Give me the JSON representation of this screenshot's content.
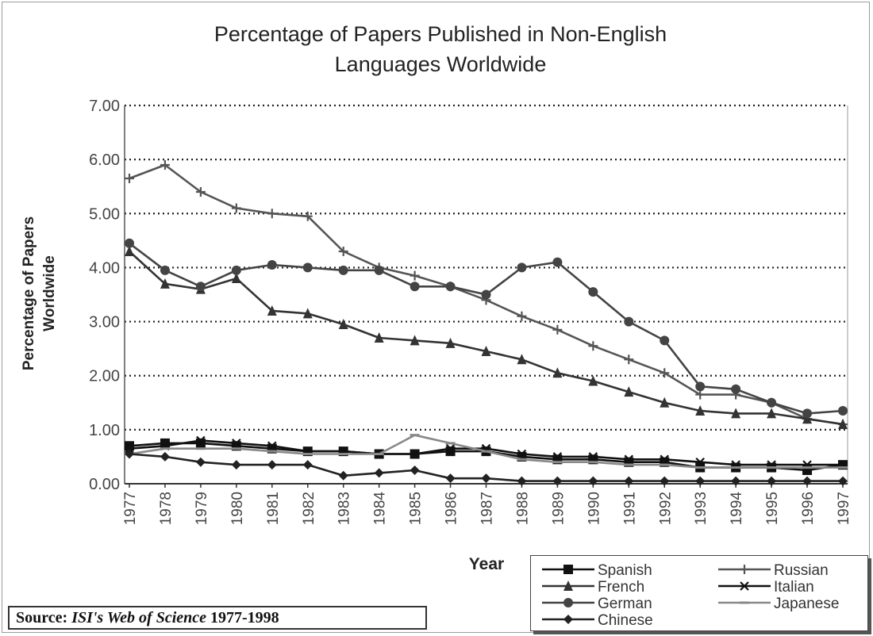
{
  "chart_data": {
    "type": "line",
    "title": [
      "Percentage of Papers Published in Non-English",
      "Languages Worldwide"
    ],
    "xlabel": "Year",
    "ylabel": [
      "Percentage of Papers",
      "Worldwide"
    ],
    "ylim": [
      0,
      7
    ],
    "yticks": [
      "0.00",
      "1.00",
      "2.00",
      "3.00",
      "4.00",
      "5.00",
      "6.00",
      "7.00"
    ],
    "grid": "horizontal dotted",
    "legend_position": "bottom-right",
    "categories": [
      "1977",
      "1978",
      "1979",
      "1980",
      "1981",
      "1982",
      "1983",
      "1984",
      "1985",
      "1986",
      "1987",
      "1988",
      "1989",
      "1990",
      "1991",
      "1992",
      "1993",
      "1994",
      "1995",
      "1996",
      "1997"
    ],
    "series": [
      {
        "name": "Spanish",
        "marker": "square",
        "color": "#111111",
        "values": [
          0.7,
          0.75,
          0.75,
          0.7,
          0.65,
          0.6,
          0.6,
          0.55,
          0.55,
          0.6,
          0.6,
          0.5,
          0.45,
          0.45,
          0.4,
          0.4,
          0.3,
          0.3,
          0.3,
          0.25,
          0.35
        ]
      },
      {
        "name": "Russian",
        "marker": "plus",
        "color": "#555555",
        "values": [
          5.65,
          5.9,
          5.4,
          5.1,
          5.0,
          4.95,
          4.3,
          4.0,
          3.85,
          3.65,
          3.4,
          3.1,
          2.85,
          2.55,
          2.3,
          2.05,
          1.65,
          1.65,
          1.5,
          1.2,
          1.1
        ]
      },
      {
        "name": "French",
        "marker": "triangle",
        "color": "#333333",
        "values": [
          4.3,
          3.7,
          3.6,
          3.8,
          3.2,
          3.15,
          2.95,
          2.7,
          2.65,
          2.6,
          2.45,
          2.3,
          2.05,
          1.9,
          1.7,
          1.5,
          1.35,
          1.3,
          1.3,
          1.2,
          1.1
        ]
      },
      {
        "name": "Italian",
        "marker": "x",
        "color": "#111111",
        "values": [
          0.65,
          0.7,
          0.8,
          0.75,
          0.7,
          0.6,
          0.6,
          0.55,
          0.55,
          0.65,
          0.65,
          0.55,
          0.5,
          0.5,
          0.45,
          0.45,
          0.4,
          0.35,
          0.35,
          0.35,
          0.35
        ]
      },
      {
        "name": "German",
        "marker": "circle",
        "color": "#444444",
        "values": [
          4.45,
          3.95,
          3.65,
          3.95,
          4.05,
          4.0,
          3.95,
          3.95,
          3.65,
          3.65,
          3.5,
          4.0,
          4.1,
          3.55,
          3.0,
          2.65,
          1.8,
          1.75,
          1.5,
          1.3,
          1.35
        ]
      },
      {
        "name": "Japanese",
        "marker": "dash",
        "color": "#888888",
        "values": [
          0.55,
          0.65,
          0.65,
          0.65,
          0.6,
          0.55,
          0.55,
          0.55,
          0.9,
          0.75,
          0.6,
          0.45,
          0.4,
          0.4,
          0.35,
          0.35,
          0.3,
          0.3,
          0.3,
          0.3,
          0.3
        ]
      },
      {
        "name": "Chinese",
        "marker": "diamond",
        "color": "#222222",
        "values": [
          0.55,
          0.5,
          0.4,
          0.35,
          0.35,
          0.35,
          0.15,
          0.2,
          0.25,
          0.1,
          0.1,
          0.05,
          0.05,
          0.05,
          0.05,
          0.05,
          0.05,
          0.05,
          0.05,
          0.05,
          0.05
        ]
      }
    ]
  },
  "source": {
    "prefix": "Source: ",
    "title": "ISI's Web of Science",
    "suffix": " 1977-1998"
  }
}
